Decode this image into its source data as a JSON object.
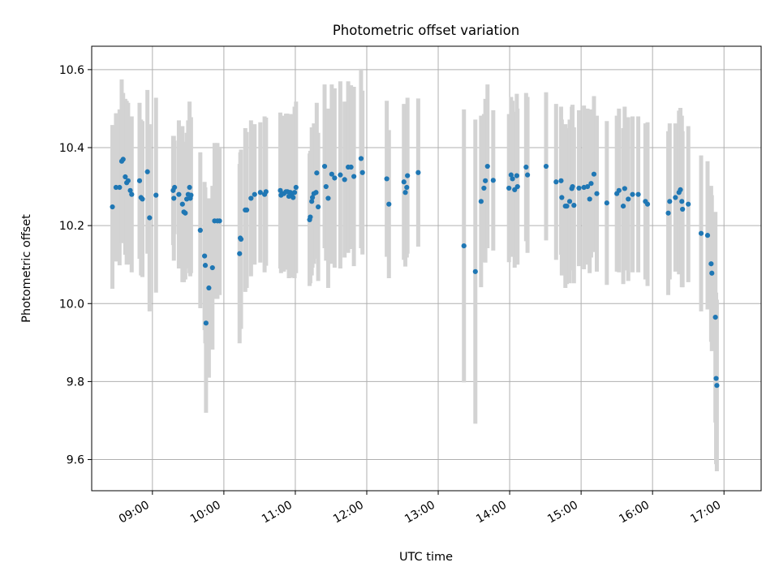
{
  "chart_data": {
    "type": "scatter",
    "title": "Photometric offset variation",
    "xlabel": "UTC time",
    "ylabel": "Photometric offset",
    "x_unit": "UTC hour of day (decimal)",
    "xlim": [
      8.15,
      17.52
    ],
    "ylim": [
      9.52,
      10.66
    ],
    "grid": true,
    "x_ticks": [
      {
        "value": 9,
        "label": "09:00"
      },
      {
        "value": 10,
        "label": "10:00"
      },
      {
        "value": 11,
        "label": "11:00"
      },
      {
        "value": 12,
        "label": "12:00"
      },
      {
        "value": 13,
        "label": "13:00"
      },
      {
        "value": 14,
        "label": "14:00"
      },
      {
        "value": 15,
        "label": "15:00"
      },
      {
        "value": 16,
        "label": "16:00"
      },
      {
        "value": 17,
        "label": "17:00"
      }
    ],
    "y_ticks": [
      {
        "value": 9.6,
        "label": "9.6"
      },
      {
        "value": 9.8,
        "label": "9.8"
      },
      {
        "value": 10.0,
        "label": "10.0"
      },
      {
        "value": 10.2,
        "label": "10.2"
      },
      {
        "value": 10.4,
        "label": "10.4"
      },
      {
        "value": 10.6,
        "label": "10.6"
      }
    ],
    "colors": {
      "point": "#1f77b4",
      "errorbar": "#d3d3d3",
      "grid": "#b0b0b0"
    },
    "series": [
      {
        "columns": [
          "x",
          "y",
          "yerr"
        ],
        "points": [
          [
            8.44,
            10.248,
            0.21
          ],
          [
            8.49,
            10.298,
            0.19
          ],
          [
            8.54,
            10.298,
            0.2
          ],
          [
            8.57,
            10.365,
            0.21
          ],
          [
            8.59,
            10.37,
            0.17
          ],
          [
            8.62,
            10.325,
            0.2
          ],
          [
            8.64,
            10.31,
            0.21
          ],
          [
            8.66,
            10.315,
            0.2
          ],
          [
            8.69,
            10.29,
            0.19
          ],
          [
            8.71,
            10.28,
            0.2
          ],
          [
            8.82,
            10.315,
            0.2
          ],
          [
            8.84,
            10.272,
            0.2
          ],
          [
            8.86,
            10.268,
            0.2
          ],
          [
            8.93,
            10.338,
            0.21
          ],
          [
            8.96,
            10.22,
            0.24
          ],
          [
            9.05,
            10.278,
            0.25
          ],
          [
            9.29,
            10.29,
            0.14
          ],
          [
            9.3,
            10.27,
            0.16
          ],
          [
            9.31,
            10.298,
            0.12
          ],
          [
            9.37,
            10.28,
            0.19
          ],
          [
            9.42,
            10.255,
            0.2
          ],
          [
            9.44,
            10.235,
            0.18
          ],
          [
            9.46,
            10.232,
            0.17
          ],
          [
            9.48,
            10.268,
            0.17
          ],
          [
            9.5,
            10.28,
            0.19
          ],
          [
            9.52,
            10.298,
            0.22
          ],
          [
            9.53,
            10.27,
            0.2
          ],
          [
            9.54,
            10.278,
            0.2
          ],
          [
            9.67,
            10.188,
            0.2
          ],
          [
            9.73,
            10.122,
            0.19
          ],
          [
            9.74,
            10.098,
            0.2
          ],
          [
            9.75,
            9.95,
            0.23
          ],
          [
            9.79,
            10.04,
            0.23
          ],
          [
            9.84,
            10.092,
            0.21
          ],
          [
            9.87,
            10.212,
            0.2
          ],
          [
            9.91,
            10.212,
            0.2
          ],
          [
            9.94,
            10.212,
            0.19
          ],
          [
            10.22,
            10.128,
            0.23
          ],
          [
            10.23,
            10.168,
            0.22
          ],
          [
            10.24,
            10.165,
            0.23
          ],
          [
            10.3,
            10.24,
            0.21
          ],
          [
            10.32,
            10.24,
            0.2
          ],
          [
            10.38,
            10.27,
            0.2
          ],
          [
            10.43,
            10.28,
            0.18
          ],
          [
            10.51,
            10.285,
            0.18
          ],
          [
            10.57,
            10.28,
            0.2
          ],
          [
            10.59,
            10.287,
            0.19
          ],
          [
            10.79,
            10.29,
            0.2
          ],
          [
            10.8,
            10.278,
            0.2
          ],
          [
            10.82,
            10.282,
            0.19
          ],
          [
            10.84,
            10.282,
            0.2
          ],
          [
            10.87,
            10.287,
            0.2
          ],
          [
            10.89,
            10.287,
            0.2
          ],
          [
            10.91,
            10.275,
            0.21
          ],
          [
            10.93,
            10.285,
            0.19
          ],
          [
            10.95,
            10.276,
            0.21
          ],
          [
            10.97,
            10.272,
            0.2
          ],
          [
            10.99,
            10.285,
            0.22
          ],
          [
            11.01,
            10.298,
            0.22
          ],
          [
            11.2,
            10.215,
            0.17
          ],
          [
            11.21,
            10.222,
            0.17
          ],
          [
            11.23,
            10.262,
            0.19
          ],
          [
            11.24,
            10.272,
            0.18
          ],
          [
            11.26,
            10.282,
            0.18
          ],
          [
            11.29,
            10.285,
            0.17
          ],
          [
            11.3,
            10.335,
            0.18
          ],
          [
            11.32,
            10.248,
            0.19
          ],
          [
            11.41,
            10.352,
            0.21
          ],
          [
            11.43,
            10.3,
            0.19
          ],
          [
            11.46,
            10.27,
            0.23
          ],
          [
            11.51,
            10.332,
            0.23
          ],
          [
            11.55,
            10.322,
            0.23
          ],
          [
            11.63,
            10.33,
            0.24
          ],
          [
            11.69,
            10.318,
            0.2
          ],
          [
            11.74,
            10.35,
            0.22
          ],
          [
            11.78,
            10.35,
            0.21
          ],
          [
            11.82,
            10.326,
            0.23
          ],
          [
            11.92,
            10.372,
            0.23
          ],
          [
            11.94,
            10.336,
            0.21
          ],
          [
            12.28,
            10.32,
            0.2
          ],
          [
            12.31,
            10.255,
            0.19
          ],
          [
            12.52,
            10.312,
            0.2
          ],
          [
            12.54,
            10.285,
            0.19
          ],
          [
            12.56,
            10.298,
            0.18
          ],
          [
            12.57,
            10.328,
            0.2
          ],
          [
            12.72,
            10.336,
            0.19
          ],
          [
            13.36,
            10.148,
            0.35
          ],
          [
            13.52,
            10.082,
            0.39
          ],
          [
            13.6,
            10.262,
            0.22
          ],
          [
            13.64,
            10.296,
            0.19
          ],
          [
            13.66,
            10.315,
            0.21
          ],
          [
            13.69,
            10.352,
            0.21
          ],
          [
            13.77,
            10.316,
            0.18
          ],
          [
            13.99,
            10.296,
            0.19
          ],
          [
            14.02,
            10.33,
            0.2
          ],
          [
            14.04,
            10.32,
            0.2
          ],
          [
            14.07,
            10.292,
            0.2
          ],
          [
            14.1,
            10.328,
            0.21
          ],
          [
            14.11,
            10.3,
            0.2
          ],
          [
            14.23,
            10.35,
            0.19
          ],
          [
            14.25,
            10.33,
            0.2
          ],
          [
            14.51,
            10.352,
            0.19
          ],
          [
            14.65,
            10.312,
            0.2
          ],
          [
            14.72,
            10.315,
            0.19
          ],
          [
            14.73,
            10.272,
            0.2
          ],
          [
            14.78,
            10.25,
            0.21
          ],
          [
            14.8,
            10.25,
            0.2
          ],
          [
            14.84,
            10.262,
            0.21
          ],
          [
            14.87,
            10.295,
            0.21
          ],
          [
            14.88,
            10.3,
            0.21
          ],
          [
            14.9,
            10.252,
            0.2
          ],
          [
            14.97,
            10.296,
            0.2
          ],
          [
            15.04,
            10.298,
            0.21
          ],
          [
            15.09,
            10.3,
            0.2
          ],
          [
            15.12,
            10.268,
            0.19
          ],
          [
            15.14,
            10.308,
            0.19
          ],
          [
            15.18,
            10.332,
            0.2
          ],
          [
            15.22,
            10.282,
            0.2
          ],
          [
            15.36,
            10.258,
            0.21
          ],
          [
            15.5,
            10.282,
            0.2
          ],
          [
            15.53,
            10.29,
            0.21
          ],
          [
            15.59,
            10.25,
            0.2
          ],
          [
            15.61,
            10.295,
            0.21
          ],
          [
            15.66,
            10.268,
            0.21
          ],
          [
            15.72,
            10.28,
            0.2
          ],
          [
            15.8,
            10.28,
            0.2
          ],
          [
            15.9,
            10.262,
            0.2
          ],
          [
            15.93,
            10.255,
            0.21
          ],
          [
            16.22,
            10.232,
            0.21
          ],
          [
            16.24,
            10.262,
            0.2
          ],
          [
            16.32,
            10.272,
            0.19
          ],
          [
            16.37,
            10.285,
            0.21
          ],
          [
            16.39,
            10.292,
            0.21
          ],
          [
            16.41,
            10.262,
            0.22
          ],
          [
            16.42,
            10.242,
            0.2
          ],
          [
            16.5,
            10.255,
            0.2
          ],
          [
            16.68,
            10.18,
            0.2
          ],
          [
            16.77,
            10.175,
            0.19
          ],
          [
            16.82,
            10.102,
            0.2
          ],
          [
            16.83,
            10.078,
            0.2
          ],
          [
            16.88,
            9.965,
            0.27
          ],
          [
            16.89,
            9.808,
            0.22
          ],
          [
            16.9,
            9.79,
            0.22
          ]
        ]
      }
    ]
  }
}
